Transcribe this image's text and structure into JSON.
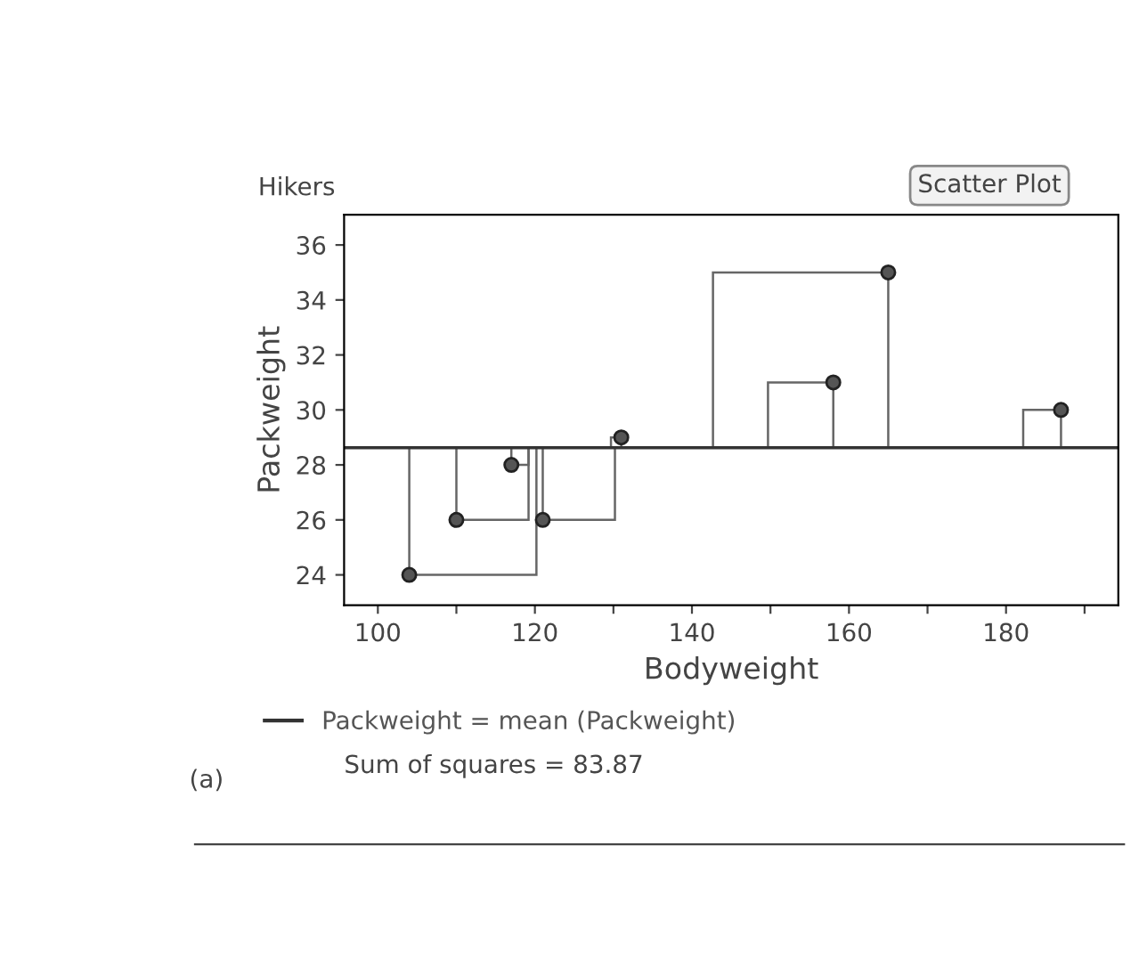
{
  "chart_data": {
    "type": "scatter",
    "title": "Hikers",
    "xlabel": "Bodyweight",
    "ylabel": "Packweight",
    "x": [
      104,
      110,
      117,
      121,
      131,
      158,
      165,
      187
    ],
    "series": [
      {
        "color": "#555555",
        "values": [
          24,
          26,
          28,
          26,
          29,
          31,
          35,
          30
        ]
      }
    ],
    "marker": "circle",
    "xlim": [
      95.7,
      194.3
    ],
    "ylim": [
      22.9,
      37.1
    ],
    "xticks": [
      100,
      {
        "value": 110,
        "label": null
      },
      120,
      {
        "value": 130,
        "label": null
      },
      140,
      {
        "value": 150,
        "label": null
      },
      160,
      {
        "value": 170,
        "label": null
      },
      180,
      {
        "value": 190,
        "label": null
      }
    ],
    "yticks": [
      24,
      26,
      28,
      30,
      32,
      34,
      36
    ],
    "ref_lines": [
      {
        "axis": "y",
        "value": 28.625,
        "label": "Packweight = mean (Packweight)",
        "color": "#333333"
      }
    ],
    "annotations": [
      "Sum of squares = 83.87",
      "Scatter Plot",
      "(a)"
    ],
    "grid": false,
    "legend": "bottom left"
  }
}
